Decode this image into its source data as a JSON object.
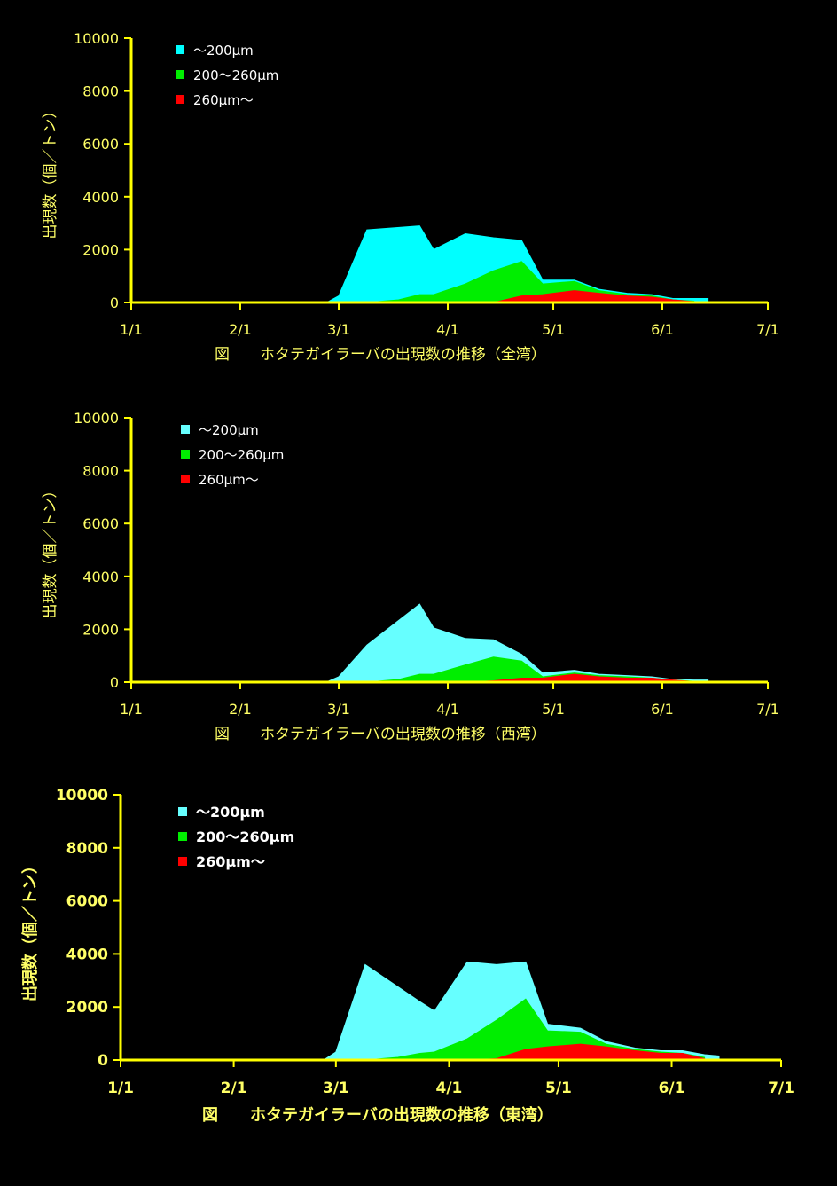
{
  "colors": {
    "background": "#000000",
    "axis": "#ffff00",
    "label": "#ffff66",
    "legend_text": "#ffffff",
    "series": [
      "#00ffff",
      "#00ee00",
      "#ff0000"
    ],
    "series_west": [
      "#66ffff",
      "#00ee00",
      "#ff0000"
    ],
    "series_east": [
      "#66ffff",
      "#00ee00",
      "#ff0000"
    ]
  },
  "chart_data": [
    {
      "type": "area",
      "stacked": false,
      "caption": "図　　ホタテガイラーバの出現数の推移（全湾）",
      "ylabel": "出現数（個／トン）",
      "xlabel": "",
      "ylim": [
        0,
        10000
      ],
      "yticks": [
        "10000",
        "8000",
        "6000",
        "4000",
        "2000",
        "0"
      ],
      "xticks": [
        "1/1",
        "2/1",
        "3/1",
        "4/1",
        "5/1",
        "6/1",
        "7/1"
      ],
      "legend_position": "top-left",
      "legend": [
        "〜200μm",
        "200〜260μm",
        "260μm〜"
      ],
      "series": [
        {
          "name": "〜200μm",
          "points": [
            [
              "2/15",
              0
            ],
            [
              "2/26",
              30
            ],
            [
              "3/1",
              250
            ],
            [
              "3/9",
              2750
            ],
            [
              "3/24",
              2900
            ],
            [
              "3/28",
              2000
            ],
            [
              "4/6",
              2600
            ],
            [
              "4/14",
              2450
            ],
            [
              "4/22",
              2350
            ],
            [
              "4/28",
              850
            ],
            [
              "5/7",
              850
            ],
            [
              "5/14",
              500
            ],
            [
              "5/22",
              350
            ],
            [
              "5/29",
              300
            ],
            [
              "6/4",
              150
            ],
            [
              "6/10",
              150
            ],
            [
              "6/14",
              150
            ],
            [
              "6/14",
              0
            ]
          ]
        },
        {
          "name": "200〜260μm",
          "points": [
            [
              "3/1",
              0
            ],
            [
              "3/9",
              0
            ],
            [
              "3/18",
              100
            ],
            [
              "3/24",
              300
            ],
            [
              "3/28",
              300
            ],
            [
              "4/6",
              700
            ],
            [
              "4/14",
              1200
            ],
            [
              "4/22",
              1550
            ],
            [
              "4/28",
              700
            ],
            [
              "5/7",
              800
            ],
            [
              "5/14",
              450
            ],
            [
              "5/22",
              300
            ],
            [
              "5/29",
              250
            ],
            [
              "6/4",
              100
            ],
            [
              "6/10",
              50
            ],
            [
              "6/10",
              0
            ]
          ]
        },
        {
          "name": "260μm〜",
          "points": [
            [
              "4/7",
              0
            ],
            [
              "4/14",
              0
            ],
            [
              "4/22",
              250
            ],
            [
              "4/28",
              300
            ],
            [
              "5/7",
              450
            ],
            [
              "5/14",
              350
            ],
            [
              "5/22",
              250
            ],
            [
              "5/29",
              200
            ],
            [
              "6/4",
              100
            ],
            [
              "6/10",
              30
            ],
            [
              "6/10",
              0
            ]
          ]
        }
      ]
    },
    {
      "type": "area",
      "stacked": false,
      "caption": "図　　ホタテガイラーバの出現数の推移（西湾）",
      "ylabel": "出現数（個／トン）",
      "xlabel": "",
      "ylim": [
        0,
        10000
      ],
      "yticks": [
        "10000",
        "8000",
        "6000",
        "4000",
        "2000",
        "0"
      ],
      "xticks": [
        "1/1",
        "2/1",
        "3/1",
        "4/1",
        "5/1",
        "6/1",
        "7/1"
      ],
      "legend_position": "top-left",
      "legend": [
        "〜200μm",
        "200〜260μm",
        "260μm〜"
      ],
      "series": [
        {
          "name": "〜200μm",
          "points": [
            [
              "2/15",
              0
            ],
            [
              "2/26",
              30
            ],
            [
              "3/1",
              200
            ],
            [
              "3/9",
              1400
            ],
            [
              "3/24",
              2950
            ],
            [
              "3/28",
              2050
            ],
            [
              "4/6",
              1650
            ],
            [
              "4/14",
              1600
            ],
            [
              "4/22",
              1050
            ],
            [
              "4/28",
              350
            ],
            [
              "5/7",
              450
            ],
            [
              "5/14",
              300
            ],
            [
              "5/22",
              250
            ],
            [
              "5/29",
              200
            ],
            [
              "6/4",
              100
            ],
            [
              "6/10",
              80
            ],
            [
              "6/14",
              80
            ],
            [
              "6/14",
              0
            ]
          ]
        },
        {
          "name": "200〜260μm",
          "points": [
            [
              "3/1",
              0
            ],
            [
              "3/9",
              0
            ],
            [
              "3/18",
              100
            ],
            [
              "3/24",
              300
            ],
            [
              "3/28",
              300
            ],
            [
              "4/6",
              650
            ],
            [
              "4/14",
              950
            ],
            [
              "4/22",
              800
            ],
            [
              "4/28",
              200
            ],
            [
              "5/7",
              350
            ],
            [
              "5/14",
              250
            ],
            [
              "5/22",
              200
            ],
            [
              "5/29",
              150
            ],
            [
              "6/4",
              80
            ],
            [
              "6/10",
              30
            ],
            [
              "6/10",
              0
            ]
          ]
        },
        {
          "name": "260μm〜",
          "points": [
            [
              "4/7",
              0
            ],
            [
              "4/14",
              50
            ],
            [
              "4/22",
              150
            ],
            [
              "4/28",
              150
            ],
            [
              "5/7",
              300
            ],
            [
              "5/14",
              200
            ],
            [
              "5/22",
              150
            ],
            [
              "5/29",
              150
            ],
            [
              "6/4",
              80
            ],
            [
              "6/10",
              20
            ],
            [
              "6/10",
              0
            ]
          ]
        }
      ]
    },
    {
      "type": "area",
      "stacked": false,
      "caption": "図　　ホタテガイラーバの出現数の推移（東湾）",
      "ylabel": "出現数（個／トン）",
      "xlabel": "",
      "ylim": [
        0,
        10000
      ],
      "yticks": [
        "10000",
        "8000",
        "6000",
        "4000",
        "2000",
        "0"
      ],
      "xticks": [
        "1/1",
        "2/1",
        "3/1",
        "4/1",
        "5/1",
        "6/1",
        "7/1"
      ],
      "legend_position": "top-left",
      "legend": [
        "〜200μm",
        "200〜260μm",
        "260μm〜"
      ],
      "series": [
        {
          "name": "〜200μm",
          "points": [
            [
              "2/15",
              0
            ],
            [
              "2/26",
              30
            ],
            [
              "3/1",
              300
            ],
            [
              "3/9",
              3600
            ],
            [
              "3/24",
              2200
            ],
            [
              "3/28",
              1850
            ],
            [
              "4/6",
              3700
            ],
            [
              "4/14",
              3600
            ],
            [
              "4/22",
              3700
            ],
            [
              "4/28",
              1350
            ],
            [
              "5/7",
              1200
            ],
            [
              "5/14",
              700
            ],
            [
              "5/22",
              450
            ],
            [
              "5/29",
              350
            ],
            [
              "6/4",
              350
            ],
            [
              "6/10",
              200
            ],
            [
              "6/14",
              150
            ],
            [
              "6/14",
              0
            ]
          ]
        },
        {
          "name": "200〜260μm",
          "points": [
            [
              "3/1",
              0
            ],
            [
              "3/9",
              0
            ],
            [
              "3/18",
              100
            ],
            [
              "3/24",
              250
            ],
            [
              "3/28",
              300
            ],
            [
              "4/6",
              800
            ],
            [
              "4/14",
              1500
            ],
            [
              "4/22",
              2300
            ],
            [
              "4/28",
              1100
            ],
            [
              "5/7",
              1050
            ],
            [
              "5/14",
              600
            ],
            [
              "5/22",
              400
            ],
            [
              "5/29",
              300
            ],
            [
              "6/4",
              250
            ],
            [
              "6/10",
              100
            ],
            [
              "6/10",
              0
            ]
          ]
        },
        {
          "name": "260μm〜",
          "points": [
            [
              "4/7",
              0
            ],
            [
              "4/14",
              50
            ],
            [
              "4/22",
              400
            ],
            [
              "4/28",
              500
            ],
            [
              "5/7",
              600
            ],
            [
              "5/14",
              500
            ],
            [
              "5/22",
              350
            ],
            [
              "5/29",
              250
            ],
            [
              "6/4",
              250
            ],
            [
              "6/10",
              50
            ],
            [
              "6/10",
              0
            ]
          ]
        }
      ]
    }
  ]
}
